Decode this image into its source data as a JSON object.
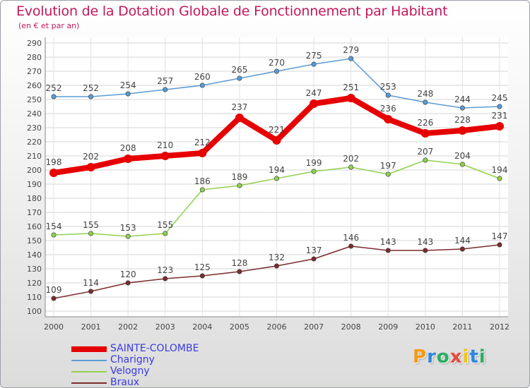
{
  "header": {
    "title": "Evolution de la Dotation Globale de Fonctionnement par Habitant",
    "subtitle": "(en € et par an)"
  },
  "logo": {
    "letters": [
      "P",
      "r",
      "o",
      "x",
      "i",
      "t",
      "i"
    ],
    "colors": [
      "#f39c12",
      "#2e86de",
      "#27ae60",
      "#e74c3c",
      "#f1c40f",
      "#2e86de",
      "#27ae60"
    ]
  },
  "chart_data": {
    "type": "line",
    "x": [
      2000,
      2001,
      2002,
      2003,
      2004,
      2005,
      2006,
      2007,
      2008,
      2009,
      2010,
      2011,
      2012
    ],
    "ylim": [
      100,
      290
    ],
    "yticks": [
      100,
      110,
      120,
      130,
      140,
      150,
      160,
      170,
      180,
      190,
      200,
      210,
      220,
      230,
      240,
      250,
      260,
      270,
      280,
      290
    ],
    "grid": true,
    "legend_position": "bottom-left",
    "series": [
      {
        "name": "SAINTE-COLOMBE",
        "color": "#e60000",
        "emphasis": true,
        "values": [
          198,
          202,
          208,
          210,
          212,
          237,
          221,
          247,
          251,
          236,
          226,
          228,
          231
        ]
      },
      {
        "name": "Charigny",
        "color": "#5b9bd5",
        "values": [
          252,
          252,
          254,
          257,
          260,
          265,
          270,
          275,
          279,
          253,
          248,
          244,
          245
        ]
      },
      {
        "name": "Velogny",
        "color": "#92d050",
        "values": [
          154,
          155,
          153,
          155,
          186,
          189,
          194,
          199,
          202,
          197,
          207,
          204,
          194
        ]
      },
      {
        "name": "Braux",
        "color": "#7b2c2c",
        "values": [
          109,
          114,
          120,
          123,
          125,
          128,
          132,
          137,
          146,
          143,
          143,
          144,
          147
        ]
      }
    ]
  }
}
